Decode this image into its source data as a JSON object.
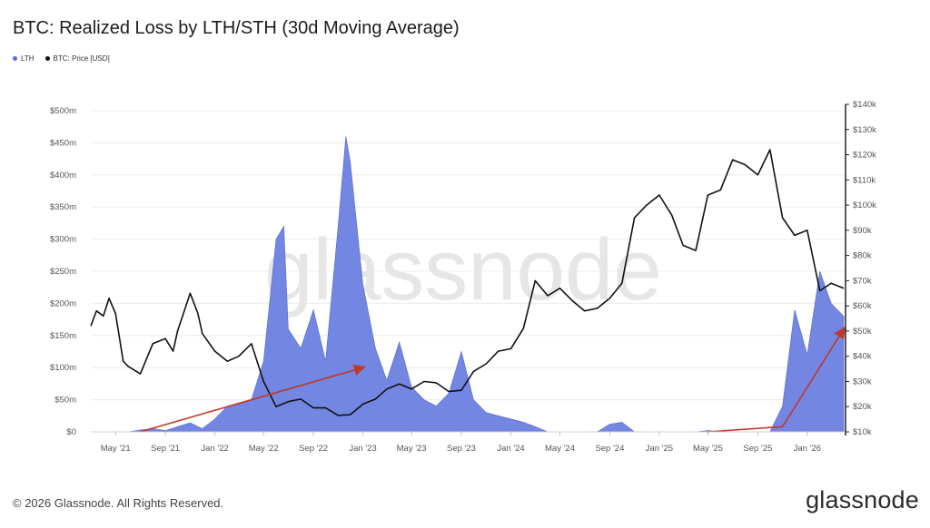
{
  "header": {
    "title": "BTC: Realized Loss by LTH/STH (30d Moving Average)"
  },
  "legend": [
    {
      "label": "LTH",
      "color": "#5470d8"
    },
    {
      "label": "BTC: Price [USD]",
      "color": "#111111"
    }
  ],
  "watermark": "glassnode",
  "footer": {
    "copyright": "© 2026 Glassnode. All Rights Reserved.",
    "brand": "glassnode"
  },
  "colors": {
    "lth_fill": "#6a7fe0",
    "price_line": "#111111",
    "annotation_arrow": "#c0392b",
    "grid": "#ececec"
  },
  "chart_data": {
    "type": "area",
    "title": "BTC: Realized Loss by LTH/STH (30d Moving Average)",
    "xlabel": "",
    "x_tick_labels": [
      "May '21",
      "Sep '21",
      "Jan '22",
      "May '22",
      "Sep '22",
      "Jan '23",
      "May '23",
      "Sep '23",
      "Jan '24",
      "May '24",
      "Sep '24",
      "Jan '25",
      "May '25",
      "Sep '25",
      "Jan '26"
    ],
    "x_range": [
      "2021-03",
      "2026-04"
    ],
    "y_left": {
      "label": "",
      "lim": [
        0,
        500000000
      ],
      "ticks": [
        "$0",
        "$50m",
        "$100m",
        "$150m",
        "$200m",
        "$250m",
        "$300m",
        "$350m",
        "$400m",
        "$450m",
        "$500m"
      ]
    },
    "y_right": {
      "label": "",
      "lim": [
        10000,
        140000
      ],
      "ticks": [
        "$10k",
        "$20k",
        "$30k",
        "$40k",
        "$50k",
        "$60k",
        "$70k",
        "$80k",
        "$90k",
        "$100k",
        "$110k",
        "$120k",
        "$130k",
        "$140k"
      ]
    },
    "grid": true,
    "legend_position": "top-left",
    "series": [
      {
        "name": "LTH",
        "axis": "left",
        "style": "area",
        "points": [
          [
            "2021-03",
            0
          ],
          [
            "2021-06",
            0
          ],
          [
            "2021-07",
            3000000
          ],
          [
            "2021-08",
            5000000
          ],
          [
            "2021-09",
            2000000
          ],
          [
            "2021-10",
            8000000
          ],
          [
            "2021-11",
            14000000
          ],
          [
            "2021-12",
            5000000
          ],
          [
            "2022-01",
            20000000
          ],
          [
            "2022-02",
            40000000
          ],
          [
            "2022-03",
            45000000
          ],
          [
            "2022-04",
            50000000
          ],
          [
            "2022-05",
            110000000
          ],
          [
            "2022-06",
            300000000
          ],
          [
            "2022-06-20",
            320000000
          ],
          [
            "2022-07",
            160000000
          ],
          [
            "2022-08",
            130000000
          ],
          [
            "2022-09",
            190000000
          ],
          [
            "2022-10",
            110000000
          ],
          [
            "2022-11",
            320000000
          ],
          [
            "2022-11-20",
            460000000
          ],
          [
            "2022-12",
            420000000
          ],
          [
            "2023-01",
            230000000
          ],
          [
            "2023-02",
            130000000
          ],
          [
            "2023-03",
            80000000
          ],
          [
            "2023-04",
            140000000
          ],
          [
            "2023-05",
            70000000
          ],
          [
            "2023-06",
            50000000
          ],
          [
            "2023-07",
            40000000
          ],
          [
            "2023-08",
            60000000
          ],
          [
            "2023-09",
            125000000
          ],
          [
            "2023-10",
            50000000
          ],
          [
            "2023-11",
            30000000
          ],
          [
            "2023-12",
            25000000
          ],
          [
            "2024-01",
            20000000
          ],
          [
            "2024-02",
            15000000
          ],
          [
            "2024-03",
            8000000
          ],
          [
            "2024-04",
            0
          ],
          [
            "2024-08",
            0
          ],
          [
            "2024-09",
            12000000
          ],
          [
            "2024-10",
            15000000
          ],
          [
            "2024-11",
            0
          ],
          [
            "2025-04",
            0
          ],
          [
            "2025-05",
            2000000
          ],
          [
            "2025-06",
            0
          ],
          [
            "2025-10",
            0
          ],
          [
            "2025-11",
            40000000
          ],
          [
            "2025-12",
            190000000
          ],
          [
            "2026-01",
            120000000
          ],
          [
            "2026-02",
            250000000
          ],
          [
            "2026-03",
            200000000
          ],
          [
            "2026-04",
            180000000
          ]
        ]
      },
      {
        "name": "BTC: Price [USD]",
        "axis": "right",
        "style": "line",
        "points": [
          [
            "2021-03",
            52000
          ],
          [
            "2021-03-15",
            58000
          ],
          [
            "2021-04",
            56000
          ],
          [
            "2021-04-15",
            63000
          ],
          [
            "2021-05",
            57000
          ],
          [
            "2021-05-20",
            38000
          ],
          [
            "2021-06",
            36000
          ],
          [
            "2021-07",
            33000
          ],
          [
            "2021-08",
            45000
          ],
          [
            "2021-09",
            47000
          ],
          [
            "2021-09-20",
            42000
          ],
          [
            "2021-10",
            50000
          ],
          [
            "2021-11",
            65000
          ],
          [
            "2021-11-20",
            57000
          ],
          [
            "2021-12",
            49000
          ],
          [
            "2022-01",
            42000
          ],
          [
            "2022-02",
            38000
          ],
          [
            "2022-03",
            40000
          ],
          [
            "2022-04",
            45000
          ],
          [
            "2022-05",
            30000
          ],
          [
            "2022-06",
            20000
          ],
          [
            "2022-07",
            22000
          ],
          [
            "2022-08",
            23000
          ],
          [
            "2022-09",
            19500
          ],
          [
            "2022-10",
            19500
          ],
          [
            "2022-11",
            16500
          ],
          [
            "2022-12",
            16800
          ],
          [
            "2023-01",
            21000
          ],
          [
            "2023-02",
            23000
          ],
          [
            "2023-03",
            27000
          ],
          [
            "2023-04",
            29000
          ],
          [
            "2023-05",
            27000
          ],
          [
            "2023-06",
            30000
          ],
          [
            "2023-07",
            29500
          ],
          [
            "2023-08",
            26000
          ],
          [
            "2023-09",
            26500
          ],
          [
            "2023-10",
            34000
          ],
          [
            "2023-11",
            37000
          ],
          [
            "2023-12",
            42000
          ],
          [
            "2024-01",
            43000
          ],
          [
            "2024-02",
            51000
          ],
          [
            "2024-03",
            70000
          ],
          [
            "2024-04",
            64000
          ],
          [
            "2024-05",
            67000
          ],
          [
            "2024-06",
            62000
          ],
          [
            "2024-07",
            58000
          ],
          [
            "2024-08",
            59000
          ],
          [
            "2024-09",
            63000
          ],
          [
            "2024-10",
            69000
          ],
          [
            "2024-11",
            95000
          ],
          [
            "2024-12",
            100000
          ],
          [
            "2025-01",
            104000
          ],
          [
            "2025-02",
            96000
          ],
          [
            "2025-03",
            84000
          ],
          [
            "2025-04",
            82000
          ],
          [
            "2025-05",
            104000
          ],
          [
            "2025-06",
            106000
          ],
          [
            "2025-07",
            118000
          ],
          [
            "2025-08",
            116000
          ],
          [
            "2025-09",
            112000
          ],
          [
            "2025-10",
            122000
          ],
          [
            "2025-11",
            95000
          ],
          [
            "2025-12",
            88000
          ],
          [
            "2026-01",
            90000
          ],
          [
            "2026-02",
            66000
          ],
          [
            "2026-03",
            69000
          ],
          [
            "2026-04",
            67000
          ]
        ]
      }
    ],
    "annotations": [
      {
        "type": "arrow",
        "from": [
          "2021-07",
          0
        ],
        "to": [
          "2023-01",
          100000000
        ],
        "axis": "left"
      },
      {
        "type": "arrow",
        "from": [
          "2025-05",
          0
        ],
        "to": [
          "2025-11",
          8000000
        ],
        "axis": "left"
      },
      {
        "type": "arrow",
        "from": [
          "2025-11",
          8000000
        ],
        "to": [
          "2026-04",
          160000000
        ],
        "axis": "left"
      }
    ]
  }
}
